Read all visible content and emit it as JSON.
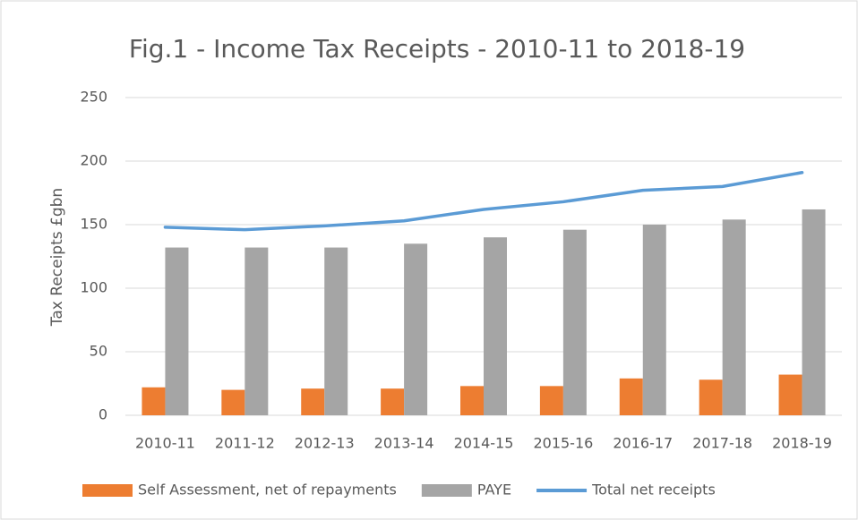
{
  "chart_data": {
    "type": "bar",
    "title": "Fig.1 - Income Tax Receipts - 2010-11 to 2018-19",
    "y_label": "Tax Receipts £gbn",
    "categories": [
      "2010-11",
      "2011-12",
      "2012-13",
      "2013-14",
      "2014-15",
      "2015-16",
      "2016-17",
      "2017-18",
      "2018-19"
    ],
    "series": [
      {
        "name": "Self Assessment, net of repayments",
        "color": "#ed7d31",
        "type": "bar",
        "values": [
          22,
          20,
          21,
          21,
          23,
          23,
          29,
          28,
          32
        ]
      },
      {
        "name": "PAYE",
        "color": "#a5a5a5",
        "type": "bar",
        "values": [
          132,
          132,
          132,
          135,
          140,
          146,
          150,
          154,
          162
        ]
      },
      {
        "name": "Total net receipts",
        "color": "#5b9bd5",
        "type": "line",
        "values": [
          148,
          146,
          149,
          153,
          162,
          168,
          177,
          180,
          191
        ]
      }
    ],
    "ylim": [
      0,
      250
    ],
    "yticks": [
      0,
      50,
      100,
      150,
      200,
      250
    ],
    "grid": true,
    "legend": "bottom"
  }
}
